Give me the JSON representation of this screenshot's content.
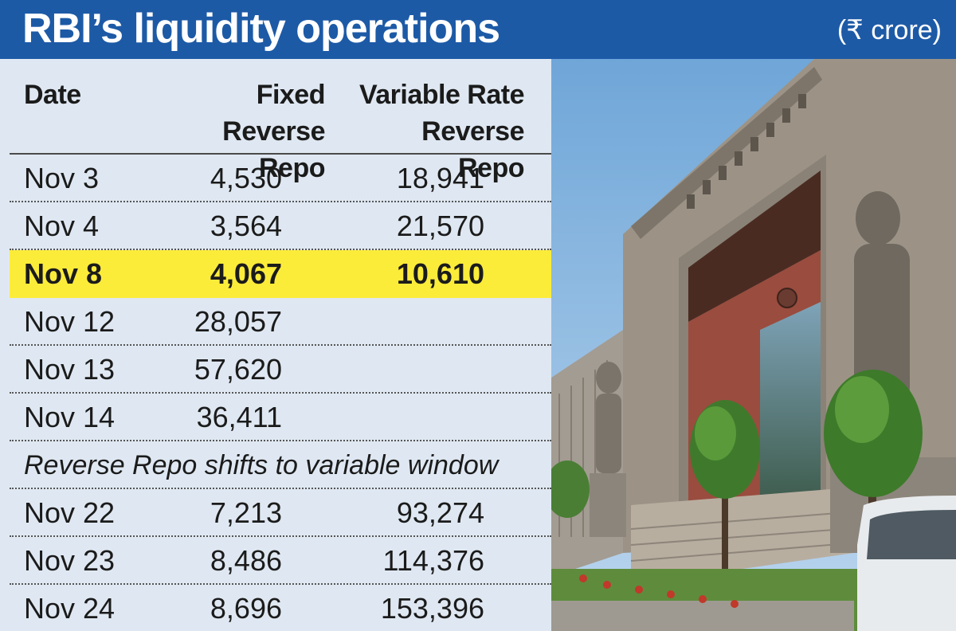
{
  "header": {
    "title": "RBI’s liquidity operations",
    "unit": "(₹ crore)"
  },
  "chart_data": {
    "type": "table",
    "title": "RBI’s liquidity operations",
    "unit": "(₹ crore)",
    "columns": [
      "Date",
      "Fixed\nReverse Repo",
      "Variable Rate\nReverse Repo"
    ],
    "rows": [
      {
        "date": "Nov 3",
        "fixed": "4,530",
        "variable": "18,941"
      },
      {
        "date": "Nov 4",
        "fixed": "3,564",
        "variable": "21,570"
      },
      {
        "date": "Nov 8",
        "fixed": "4,067",
        "variable": "10,610",
        "highlight": true
      },
      {
        "date": "Nov 12",
        "fixed": "28,057",
        "variable": ""
      },
      {
        "date": "Nov 13",
        "fixed": "57,620",
        "variable": ""
      },
      {
        "date": "Nov 14",
        "fixed": "36,411",
        "variable": ""
      },
      {
        "note": "Reverse Repo shifts to variable window"
      },
      {
        "date": "Nov 22",
        "fixed": "7,213",
        "variable": "93,274"
      },
      {
        "date": "Nov 23",
        "fixed": "8,486",
        "variable": "114,376"
      },
      {
        "date": "Nov 24",
        "fixed": "8,696",
        "variable": "153,396"
      }
    ]
  },
  "colors": {
    "header_bg": "#1d5aa6",
    "panel_bg": "#dfe8f2",
    "highlight": "#fcec3a"
  },
  "photo": {
    "subject": "building-facade-photo"
  }
}
